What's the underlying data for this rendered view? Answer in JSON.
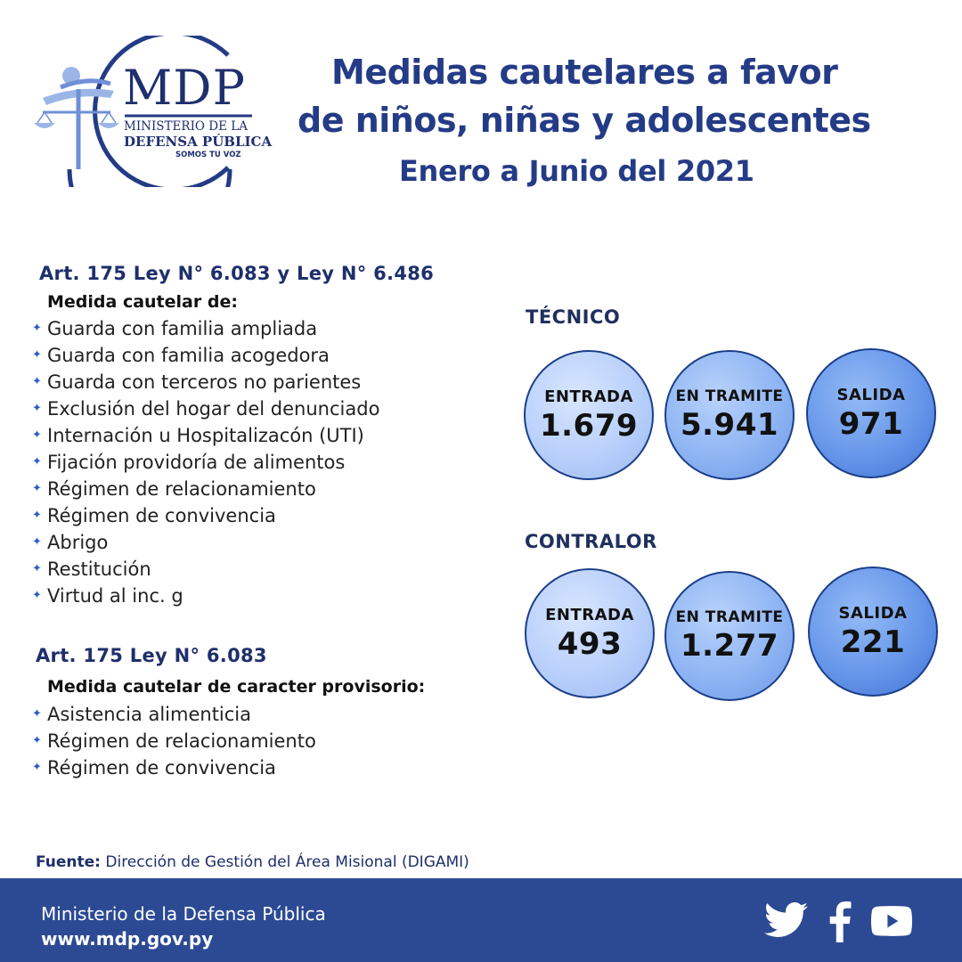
{
  "logo": {
    "abbr": "MDP",
    "line1": "MINISTERIO DE LA",
    "line2": "DEFENSA PÚBLICA",
    "line3": "SOMOS TU VOZ"
  },
  "header": {
    "title_line1": "Medidas cautelares a favor",
    "title_line2": "de niños, niñas y adolescentes",
    "period": "Enero a Junio del 2021"
  },
  "section1": {
    "heading": "Art. 175 Ley N° 6.083 y Ley N° 6.486",
    "subheading": "Medida cautelar de:",
    "items": [
      "Guarda con familia ampliada",
      "Guarda con familia acogedora",
      "Guarda con terceros no parientes",
      "Exclusión del hogar del denunciado",
      "Internación u Hospitalizacón (UTI)",
      "Fijación providoría de alimentos",
      "Régimen de relacionamiento",
      "Régimen de convivencia",
      "Abrigo",
      "Restitución",
      "Virtud al inc. g"
    ]
  },
  "section2": {
    "heading": "Art. 175 Ley N° 6.083",
    "subheading": "Medida cautelar de caracter provisorio:",
    "items": [
      "Asistencia alimenticia",
      "Régimen de relacionamiento",
      "Régimen de convivencia"
    ]
  },
  "stats": {
    "tecnico": {
      "title": "TÉCNICO",
      "entrada_label": "ENTRADA",
      "entrada": "1.679",
      "tramite_label": "EN TRAMITE",
      "tramite": "5.941",
      "salida_label": "SALIDA",
      "salida": "971"
    },
    "contralor": {
      "title": "CONTRALOR",
      "entrada_label": "ENTRADA",
      "entrada": "493",
      "tramite_label": "EN TRAMITE",
      "tramite": "1.277",
      "salida_label": "SALIDA",
      "salida": "221"
    }
  },
  "source": {
    "label": "Fuente:",
    "text": "Dirección de Gestión del Área Misional (DIGAMI)"
  },
  "footer": {
    "org": "Ministerio de la Defensa Pública",
    "url": "www.mdp.gov.py"
  },
  "colors": {
    "title_blue": "#243b86",
    "footer_blue": "#2c4a94",
    "bullet_blue": "#2a5fc4"
  },
  "icons": [
    "twitter-icon",
    "facebook-icon",
    "youtube-icon"
  ]
}
